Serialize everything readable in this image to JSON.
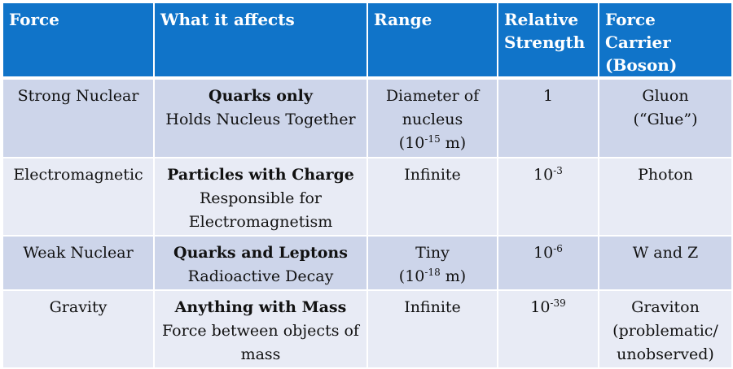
{
  "headers": {
    "force": "Force",
    "affects": "What it affects",
    "range": "Range",
    "strength": "Relative Strength",
    "carrier": "Force Carrier (Boson)"
  },
  "rows": [
    {
      "force": "Strong Nuclear",
      "affects_bold": "Quarks only",
      "affects_desc": "Holds Nucleus Together",
      "range_text": "Diameter of nucleus",
      "range_paren_base": "(10",
      "range_paren_exp": "-15",
      "range_paren_unit": " m)",
      "strength_base": "1",
      "strength_exp": "",
      "carrier_line1": "Gluon",
      "carrier_line2": "(“Glue”)"
    },
    {
      "force": "Electromagnetic",
      "affects_bold": "Particles with Charge",
      "affects_desc": "Responsible for Electromagnetism",
      "range_text": "Infinite",
      "strength_base": "10",
      "strength_exp": "-3",
      "carrier_line1": "Photon"
    },
    {
      "force": "Weak Nuclear",
      "affects_bold": "Quarks and Leptons",
      "affects_desc": "Radioactive Decay",
      "range_text": "Tiny",
      "range_paren_base": "(10",
      "range_paren_exp": "-18",
      "range_paren_unit": " m)",
      "strength_base": "10",
      "strength_exp": "-6",
      "carrier_line1": "W and Z"
    },
    {
      "force": "Gravity",
      "affects_bold": "Anything with Mass",
      "affects_desc": "Force between objects of mass",
      "range_text": "Infinite",
      "strength_base": "10",
      "strength_exp": "-39",
      "carrier_line1": "Graviton",
      "carrier_line2": "(problematic/ unobserved)"
    }
  ],
  "colors": {
    "header_bg": "#1074c9",
    "row_odd_bg": "#cdd5ea",
    "row_even_bg": "#e8ebf5"
  }
}
